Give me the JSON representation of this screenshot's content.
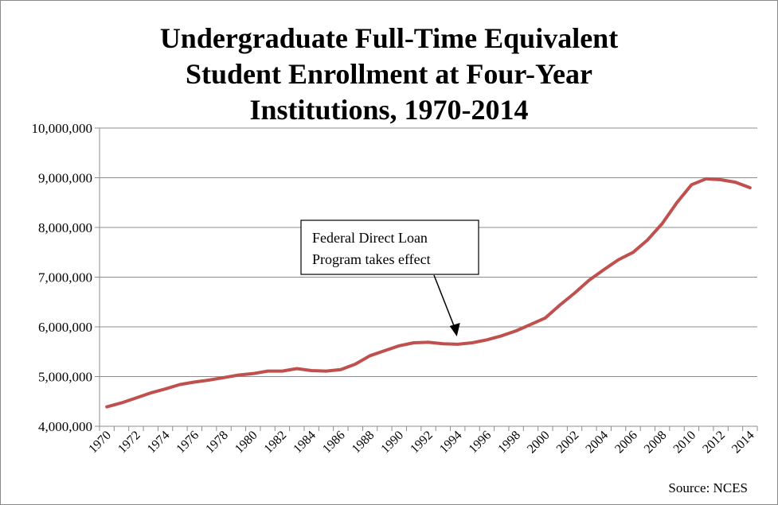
{
  "chart_data": {
    "type": "line",
    "title": "Undergraduate Full-Time Equivalent\nStudent Enrollment at Four-Year\nInstitutions, 1970-2014",
    "xlabel": "",
    "ylabel": "",
    "x": [
      1970,
      1971,
      1972,
      1973,
      1974,
      1975,
      1976,
      1977,
      1978,
      1979,
      1980,
      1981,
      1982,
      1983,
      1984,
      1985,
      1986,
      1987,
      1988,
      1989,
      1990,
      1991,
      1992,
      1993,
      1994,
      1995,
      1996,
      1997,
      1998,
      1999,
      2000,
      2001,
      2002,
      2003,
      2004,
      2005,
      2006,
      2007,
      2008,
      2009,
      2010,
      2011,
      2012,
      2013,
      2014
    ],
    "x_tick_labels": [
      "1970",
      "1972",
      "1974",
      "1976",
      "1978",
      "1980",
      "1982",
      "1984",
      "1986",
      "1988",
      "1990",
      "1992",
      "1994",
      "1996",
      "1998",
      "2000",
      "2002",
      "2004",
      "2006",
      "2008",
      "2010",
      "2012",
      "2014"
    ],
    "series": [
      {
        "values": [
          4390000,
          4470000,
          4570000,
          4670000,
          4750000,
          4840000,
          4890000,
          4930000,
          4980000,
          5030000,
          5060000,
          5110000,
          5110000,
          5160000,
          5120000,
          5110000,
          5140000,
          5250000,
          5420000,
          5520000,
          5620000,
          5680000,
          5690000,
          5660000,
          5650000,
          5680000,
          5740000,
          5820000,
          5920000,
          6050000,
          6180000,
          6440000,
          6680000,
          6940000,
          7150000,
          7350000,
          7500000,
          7750000,
          8080000,
          8500000,
          8860000,
          8980000,
          8960000,
          8910000,
          8800000
        ]
      }
    ],
    "ylim": [
      4000000,
      10000000
    ],
    "y_ticks": [
      4000000,
      5000000,
      6000000,
      7000000,
      8000000,
      9000000,
      10000000
    ],
    "y_tick_labels": [
      "4,000,000",
      "5,000,000",
      "6,000,000",
      "7,000,000",
      "8,000,000",
      "9,000,000",
      "10,000,000"
    ],
    "grid": true,
    "legend": "none",
    "line_color": "#c0504d",
    "annotation": {
      "text_lines": [
        "Federal Direct Loan",
        "Program takes effect"
      ],
      "points_to_x": 1994
    },
    "source_note": "Source: NCES"
  }
}
